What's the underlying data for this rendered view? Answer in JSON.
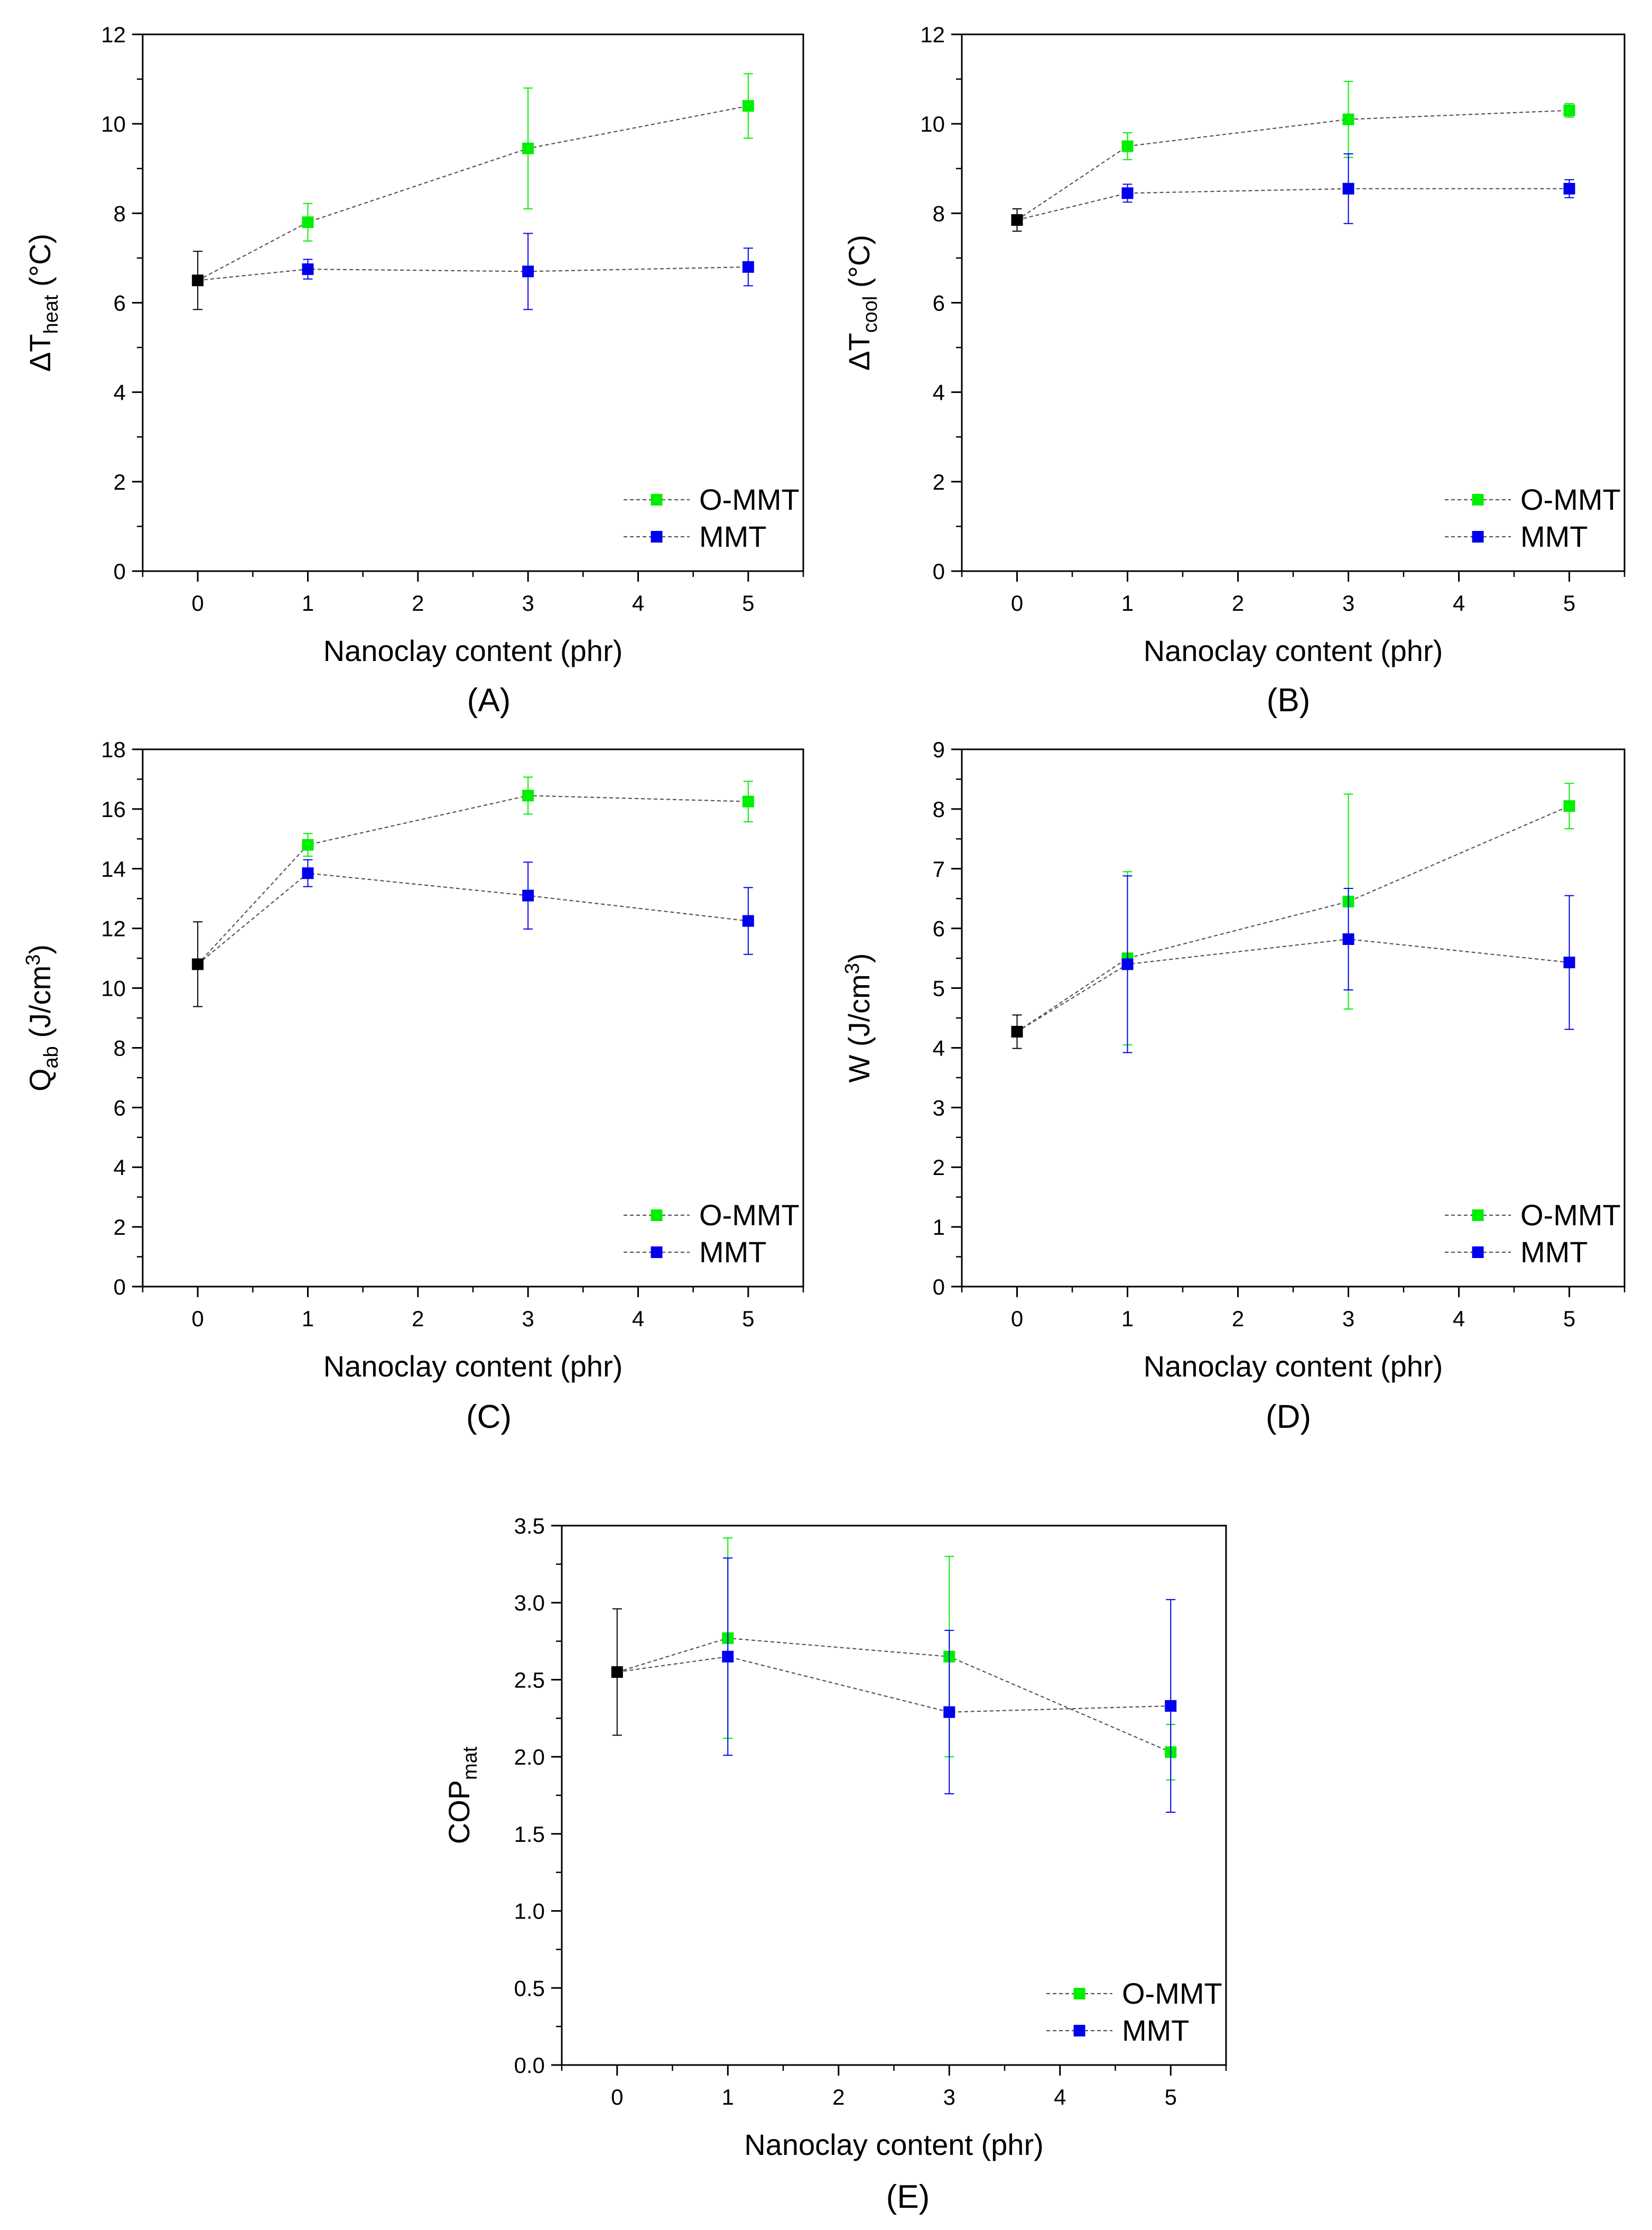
{
  "colors": {
    "o_mmt": "#00ee00",
    "mmt": "#0000ee",
    "reference": "#000000",
    "connector": "#555555"
  },
  "chart_data": [
    {
      "panel_label": "(A)",
      "type": "scatter",
      "ylabel": {
        "main": "ΔT",
        "sub": "heat",
        "unit": " (°C)"
      },
      "xlabel": "Nanoclay content (phr)",
      "xlim": [
        -0.5,
        5.5
      ],
      "xticks": [
        0,
        1,
        2,
        3,
        4,
        5
      ],
      "ylim": [
        0,
        12
      ],
      "yticks": [
        0,
        2,
        4,
        6,
        8,
        10,
        12
      ],
      "ytick_labels": [
        "0",
        "2",
        "4",
        "6",
        "8",
        "10",
        "12"
      ],
      "legend_position": "bottom-right",
      "reference": {
        "x": 0,
        "y": 6.5,
        "err": 0.65
      },
      "series": [
        {
          "name": "O-MMT",
          "color_key": "o_mmt",
          "x": [
            1,
            3,
            5
          ],
          "y": [
            7.8,
            9.45,
            10.4
          ],
          "err": [
            0.42,
            1.35,
            0.72
          ]
        },
        {
          "name": "MMT",
          "color_key": "mmt",
          "x": [
            1,
            3,
            5
          ],
          "y": [
            6.75,
            6.7,
            6.8
          ],
          "err": [
            0.22,
            0.85,
            0.42
          ]
        }
      ]
    },
    {
      "panel_label": "(B)",
      "type": "scatter",
      "ylabel": {
        "main": "ΔT",
        "sub": "cool",
        "unit": " (°C)"
      },
      "xlabel": "Nanoclay content (phr)",
      "xlim": [
        -0.5,
        5.5
      ],
      "xticks": [
        0,
        1,
        2,
        3,
        4,
        5
      ],
      "ylim": [
        0,
        12
      ],
      "yticks": [
        0,
        2,
        4,
        6,
        8,
        10,
        12
      ],
      "ytick_labels": [
        "0",
        "2",
        "4",
        "6",
        "8",
        "10",
        "12"
      ],
      "legend_position": "bottom-right",
      "reference": {
        "x": 0,
        "y": 7.85,
        "err": 0.25
      },
      "series": [
        {
          "name": "O-MMT",
          "color_key": "o_mmt",
          "x": [
            1,
            3,
            5
          ],
          "y": [
            9.5,
            10.1,
            10.3
          ],
          "err": [
            0.3,
            0.85,
            0.15
          ]
        },
        {
          "name": "MMT",
          "color_key": "mmt",
          "x": [
            1,
            3,
            5
          ],
          "y": [
            8.45,
            8.55,
            8.55
          ],
          "err": [
            0.2,
            0.78,
            0.2
          ]
        }
      ]
    },
    {
      "panel_label": "(C)",
      "type": "scatter",
      "ylabel": {
        "main": "Q",
        "sub": "ab",
        "unit": " (J/cm",
        "sup": "3",
        "unit_end": ")"
      },
      "xlabel": "Nanoclay content (phr)",
      "xlim": [
        -0.5,
        5.5
      ],
      "xticks": [
        0,
        1,
        2,
        3,
        4,
        5
      ],
      "ylim": [
        0,
        18
      ],
      "yticks": [
        0,
        2,
        4,
        6,
        8,
        10,
        12,
        14,
        16,
        18
      ],
      "ytick_labels": [
        "0",
        "2",
        "4",
        "6",
        "8",
        "10",
        "12",
        "14",
        "16",
        "18"
      ],
      "legend_position": "bottom-right",
      "reference": {
        "x": 0,
        "y": 10.8,
        "err": 1.42
      },
      "series": [
        {
          "name": "O-MMT",
          "color_key": "o_mmt",
          "x": [
            1,
            3,
            5
          ],
          "y": [
            14.8,
            16.45,
            16.25
          ],
          "err": [
            0.38,
            0.62,
            0.68
          ]
        },
        {
          "name": "MMT",
          "color_key": "mmt",
          "x": [
            1,
            3,
            5
          ],
          "y": [
            13.85,
            13.1,
            12.25
          ],
          "err": [
            0.45,
            1.12,
            1.12
          ]
        }
      ]
    },
    {
      "panel_label": "(D)",
      "type": "scatter",
      "ylabel": {
        "main": "W",
        "sub": "",
        "unit": " (J/cm",
        "sup": "3",
        "unit_end": ")"
      },
      "xlabel": "Nanoclay content (phr)",
      "xlim": [
        -0.5,
        5.5
      ],
      "xticks": [
        0,
        1,
        2,
        3,
        4,
        5
      ],
      "ylim": [
        0,
        9
      ],
      "yticks": [
        0,
        1,
        2,
        3,
        4,
        5,
        6,
        7,
        8,
        9
      ],
      "ytick_labels": [
        "0",
        "1",
        "2",
        "3",
        "4",
        "5",
        "6",
        "7",
        "8",
        "9"
      ],
      "legend_position": "bottom-right",
      "reference": {
        "x": 0,
        "y": 4.27,
        "err": 0.28
      },
      "series": [
        {
          "name": "O-MMT",
          "color_key": "o_mmt",
          "x": [
            1,
            3,
            5
          ],
          "y": [
            5.5,
            6.45,
            8.05
          ],
          "err": [
            1.45,
            1.8,
            0.38
          ]
        },
        {
          "name": "MMT",
          "color_key": "mmt",
          "x": [
            1,
            3,
            5
          ],
          "y": [
            5.4,
            5.82,
            5.43
          ],
          "err": [
            1.48,
            0.85,
            1.12
          ]
        }
      ]
    },
    {
      "panel_label": "(E)",
      "type": "scatter",
      "ylabel": {
        "main": "COP",
        "sub": "mat",
        "unit": ""
      },
      "xlabel": "Nanoclay content (phr)",
      "xlim": [
        -0.5,
        5.5
      ],
      "xticks": [
        0,
        1,
        2,
        3,
        4,
        5
      ],
      "ylim": [
        0,
        3.5
      ],
      "yticks": [
        0,
        0.5,
        1,
        1.5,
        2,
        2.5,
        3,
        3.5
      ],
      "ytick_labels": [
        "0.0",
        "0.5",
        "1.0",
        "1.5",
        "2.0",
        "2.5",
        "3.0",
        "3.5"
      ],
      "legend_position": "bottom-right",
      "reference": {
        "x": 0,
        "y": 2.55,
        "err": 0.41
      },
      "series": [
        {
          "name": "O-MMT",
          "color_key": "o_mmt",
          "x": [
            1,
            3,
            5
          ],
          "y": [
            2.77,
            2.65,
            2.03
          ],
          "err": [
            0.65,
            0.65,
            0.18
          ]
        },
        {
          "name": "MMT",
          "color_key": "mmt",
          "x": [
            1,
            3,
            5
          ],
          "y": [
            2.65,
            2.29,
            2.33
          ],
          "err": [
            0.64,
            0.53,
            0.69
          ]
        }
      ]
    }
  ]
}
